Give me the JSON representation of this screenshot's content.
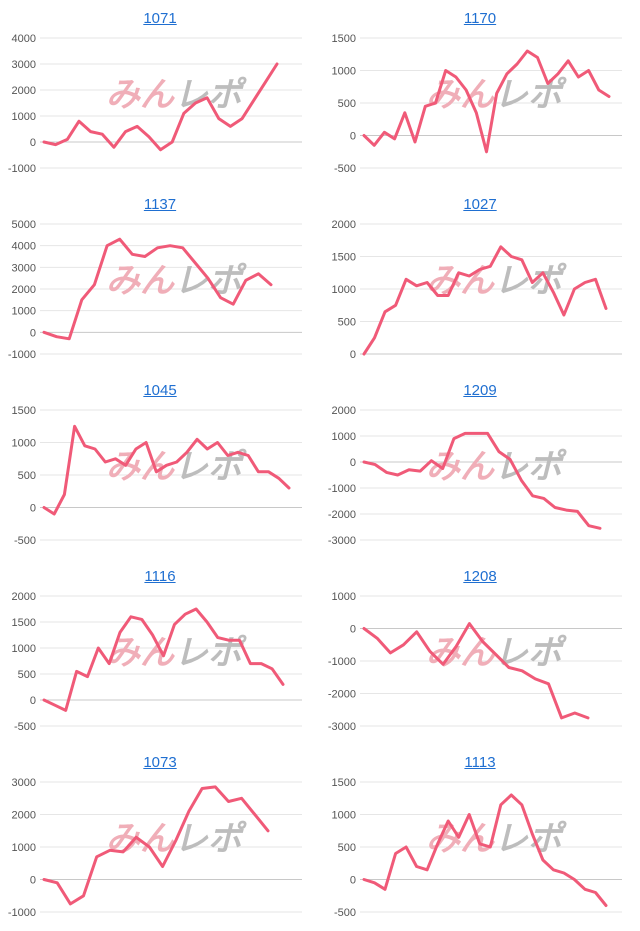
{
  "line_color": "#f05a78",
  "grid_color": "#e6e6e6",
  "title_color": "#1f6fd1",
  "watermark": "みんレポ",
  "chart_data": [
    {
      "type": "line",
      "title": "1071",
      "yticks": [
        4000,
        3000,
        2000,
        1000,
        0,
        -1000
      ],
      "ylim": [
        -1000,
        4000
      ],
      "values": [
        0,
        -100,
        100,
        800,
        400,
        300,
        -200,
        400,
        600,
        200,
        -300,
        0,
        1100,
        1500,
        1700,
        900,
        600,
        900,
        1600,
        2300,
        3000
      ]
    },
    {
      "type": "line",
      "title": "1170",
      "yticks": [
        1500,
        1000,
        500,
        0,
        -500
      ],
      "ylim": [
        -500,
        1500
      ],
      "values": [
        0,
        -150,
        50,
        -50,
        350,
        -100,
        450,
        500,
        1000,
        900,
        700,
        350,
        -250,
        650,
        950,
        1100,
        1300,
        1200,
        800,
        950,
        1150,
        900,
        1000,
        700,
        600
      ]
    },
    {
      "type": "line",
      "title": "1137",
      "yticks": [
        5000,
        4000,
        3000,
        2000,
        1000,
        0,
        -1000
      ],
      "ylim": [
        -1000,
        5000
      ],
      "values": [
        0,
        -200,
        -300,
        1500,
        2200,
        4000,
        4300,
        3600,
        3500,
        3900,
        4000,
        3900,
        3200,
        2500,
        1600,
        1300,
        2400,
        2700,
        2200
      ]
    },
    {
      "type": "line",
      "title": "1027",
      "yticks": [
        2000,
        1500,
        1000,
        500,
        0
      ],
      "ylim": [
        0,
        2000
      ],
      "values": [
        0,
        250,
        650,
        750,
        1150,
        1050,
        1100,
        900,
        900,
        1250,
        1200,
        1300,
        1350,
        1650,
        1500,
        1450,
        1100,
        1250,
        950,
        600,
        1000,
        1100,
        1150,
        700
      ]
    },
    {
      "type": "line",
      "title": "1045",
      "yticks": [
        1500,
        1000,
        500,
        0,
        -500
      ],
      "ylim": [
        -500,
        1500
      ],
      "values": [
        0,
        -100,
        200,
        1250,
        950,
        900,
        700,
        750,
        650,
        900,
        1000,
        550,
        650,
        700,
        850,
        1050,
        900,
        1000,
        800,
        850,
        800,
        550,
        550,
        450,
        300
      ]
    },
    {
      "type": "line",
      "title": "1209",
      "yticks": [
        2000,
        1000,
        0,
        -1000,
        -2000,
        -3000
      ],
      "ylim": [
        -3000,
        2000
      ],
      "values": [
        0,
        -100,
        -400,
        -500,
        -300,
        -350,
        50,
        -250,
        900,
        1100,
        1100,
        1100,
        400,
        100,
        -700,
        -1300,
        -1400,
        -1750,
        -1850,
        -1900,
        -2450,
        -2550
      ]
    },
    {
      "type": "line",
      "title": "1116",
      "yticks": [
        2000,
        1500,
        1000,
        500,
        0,
        -500
      ],
      "ylim": [
        -500,
        2000
      ],
      "values": [
        0,
        -100,
        -200,
        550,
        450,
        1000,
        700,
        1300,
        1600,
        1550,
        1250,
        850,
        1450,
        1650,
        1750,
        1500,
        1200,
        1150,
        1150,
        700,
        700,
        600,
        300
      ]
    },
    {
      "type": "line",
      "title": "1208",
      "yticks": [
        1000,
        0,
        -1000,
        -2000,
        -3000
      ],
      "ylim": [
        -3000,
        1000
      ],
      "values": [
        0,
        -300,
        -750,
        -500,
        -100,
        -700,
        -1100,
        -550,
        150,
        -400,
        -800,
        -1200,
        -1300,
        -1550,
        -1700,
        -2750,
        -2600,
        -2750
      ]
    },
    {
      "type": "line",
      "title": "1073",
      "yticks": [
        3000,
        2000,
        1000,
        0,
        -1000
      ],
      "ylim": [
        -1000,
        3000
      ],
      "values": [
        0,
        -100,
        -750,
        -500,
        700,
        900,
        850,
        1300,
        1000,
        400,
        1200,
        2100,
        2800,
        2850,
        2400,
        2500,
        2000,
        1500
      ]
    },
    {
      "type": "line",
      "title": "1113",
      "yticks": [
        1500,
        1000,
        500,
        0,
        -500
      ],
      "ylim": [
        -500,
        1500
      ],
      "values": [
        0,
        -50,
        -150,
        400,
        500,
        200,
        150,
        550,
        900,
        650,
        1000,
        550,
        500,
        1150,
        1300,
        1150,
        700,
        300,
        150,
        100,
        0,
        -150,
        -200,
        -400
      ]
    }
  ]
}
